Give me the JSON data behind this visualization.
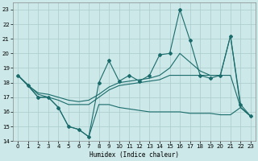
{
  "xlabel": "Humidex (Indice chaleur)",
  "xlim": [
    -0.5,
    23.5
  ],
  "ylim": [
    14,
    23.5
  ],
  "yticks": [
    14,
    15,
    16,
    17,
    18,
    19,
    20,
    21,
    22,
    23
  ],
  "xticks": [
    0,
    1,
    2,
    3,
    4,
    5,
    6,
    7,
    8,
    9,
    10,
    11,
    12,
    13,
    14,
    15,
    16,
    17,
    18,
    19,
    20,
    21,
    22,
    23
  ],
  "bg_color": "#cce8e8",
  "grid_color": "#aacccc",
  "line_color": "#1a6b6b",
  "line1_x": [
    0,
    1,
    2,
    3,
    4,
    5,
    6,
    7,
    8,
    9,
    10,
    11,
    12,
    13,
    14,
    15,
    16,
    17,
    18,
    19,
    20,
    21,
    22,
    23
  ],
  "line1_y": [
    18.5,
    17.8,
    17.0,
    17.0,
    16.3,
    15.0,
    14.8,
    14.3,
    16.5,
    16.5,
    16.3,
    16.2,
    16.1,
    16.0,
    16.0,
    16.0,
    16.0,
    15.9,
    15.9,
    15.9,
    15.8,
    15.8,
    16.3,
    15.7
  ],
  "line2_x": [
    0,
    1,
    2,
    3,
    4,
    5,
    6,
    7,
    8,
    9,
    10,
    11,
    12,
    13,
    14,
    15,
    16,
    17,
    18,
    19,
    20,
    21,
    22,
    23
  ],
  "line2_y": [
    18.5,
    17.8,
    17.0,
    17.0,
    16.3,
    15.0,
    14.8,
    14.3,
    18.0,
    19.5,
    18.1,
    18.5,
    18.1,
    18.5,
    19.9,
    20.0,
    23.0,
    20.9,
    18.5,
    18.3,
    18.5,
    21.2,
    16.5,
    15.7
  ],
  "line3_x": [
    0,
    1,
    2,
    3,
    4,
    5,
    6,
    7,
    8,
    9,
    10,
    11,
    12,
    13,
    14,
    15,
    16,
    17,
    18,
    19,
    20,
    21,
    22,
    23
  ],
  "line3_y": [
    18.5,
    17.8,
    17.3,
    17.2,
    17.0,
    16.8,
    16.7,
    16.8,
    17.2,
    17.7,
    18.0,
    18.1,
    18.2,
    18.3,
    18.5,
    19.0,
    20.0,
    19.4,
    18.8,
    18.5,
    18.5,
    18.5,
    16.3,
    15.7
  ],
  "line4_x": [
    0,
    2,
    3,
    4,
    5,
    6,
    7,
    8,
    9,
    10,
    11,
    12,
    13,
    14,
    15,
    16,
    17,
    18,
    19,
    20,
    21,
    22,
    23
  ],
  "line4_y": [
    18.5,
    17.2,
    17.0,
    16.8,
    16.5,
    16.5,
    16.5,
    17.0,
    17.5,
    17.8,
    17.9,
    18.0,
    18.1,
    18.2,
    18.5,
    18.5,
    18.5,
    18.5,
    18.5,
    18.5,
    21.2,
    16.3,
    15.7
  ]
}
